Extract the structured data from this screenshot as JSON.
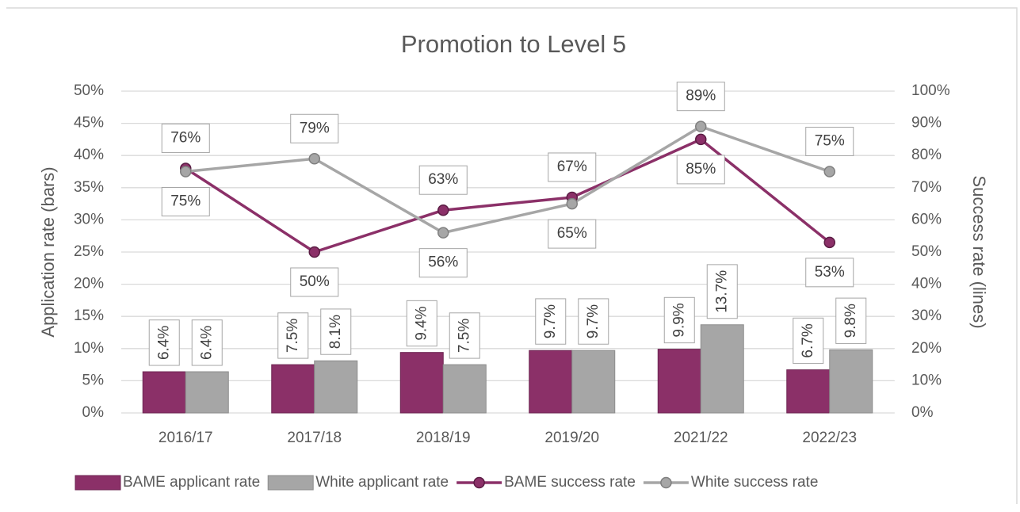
{
  "chart_data": {
    "type": "combo",
    "title": "Promotion to Level 5",
    "y_label": "Application rate (bars)",
    "y2_label": "Success rate (lines)",
    "categories": [
      "2016/17",
      "2017/18",
      "2018/19",
      "2019/20",
      "2021/22",
      "2022/23"
    ],
    "ylim": [
      0,
      50
    ],
    "yticks": [
      {
        "value": 0,
        "label": "0%"
      },
      {
        "value": 5,
        "label": "5%"
      },
      {
        "value": 10,
        "label": "10%"
      },
      {
        "value": 15,
        "label": "15%"
      },
      {
        "value": 20,
        "label": "20%"
      },
      {
        "value": 25,
        "label": "25%"
      },
      {
        "value": 30,
        "label": "30%"
      },
      {
        "value": 35,
        "label": "35%"
      },
      {
        "value": 40,
        "label": "40%"
      },
      {
        "value": 45,
        "label": "45%"
      },
      {
        "value": 50,
        "label": "50%"
      }
    ],
    "y2lim": [
      0,
      100
    ],
    "y2ticks": [
      {
        "value": 0,
        "label": "0%"
      },
      {
        "value": 10,
        "label": "10%"
      },
      {
        "value": 20,
        "label": "20%"
      },
      {
        "value": 30,
        "label": "30%"
      },
      {
        "value": 40,
        "label": "40%"
      },
      {
        "value": 50,
        "label": "50%"
      },
      {
        "value": 60,
        "label": "60%"
      },
      {
        "value": 70,
        "label": "70%"
      },
      {
        "value": 80,
        "label": "80%"
      },
      {
        "value": 90,
        "label": "90%"
      },
      {
        "value": 100,
        "label": "100%"
      }
    ],
    "grid": true,
    "legend": "bottom",
    "series": [
      {
        "name": "BAME applicant rate",
        "type": "bar",
        "color": "#8b3068",
        "values": [
          6.4,
          7.5,
          9.4,
          9.7,
          9.9,
          6.7
        ],
        "value_labels": [
          "6.4%",
          "7.5%",
          "9.4%",
          "9.7%",
          "9.9%",
          "6.7%"
        ]
      },
      {
        "name": "White applicant rate",
        "type": "bar",
        "color": "#a6a6a6",
        "values": [
          6.4,
          8.1,
          7.5,
          9.7,
          13.7,
          9.8
        ],
        "value_labels": [
          "6.4%",
          "8.1%",
          "7.5%",
          "9.7%",
          "13.7%",
          "9.8%"
        ]
      },
      {
        "name": "BAME success rate",
        "type": "line",
        "axis": "y2",
        "color": "#8b3068",
        "values": [
          76,
          50,
          63,
          67,
          85,
          53
        ],
        "value_labels": [
          "76%",
          "50%",
          "63%",
          "67%",
          "85%",
          "53%"
        ]
      },
      {
        "name": "White success rate",
        "type": "line",
        "axis": "y2",
        "color": "#a6a6a6",
        "values": [
          75,
          79,
          56,
          65,
          89,
          75
        ],
        "value_labels": [
          "75%",
          "79%",
          "56%",
          "65%",
          "89%",
          "75%"
        ]
      }
    ]
  }
}
